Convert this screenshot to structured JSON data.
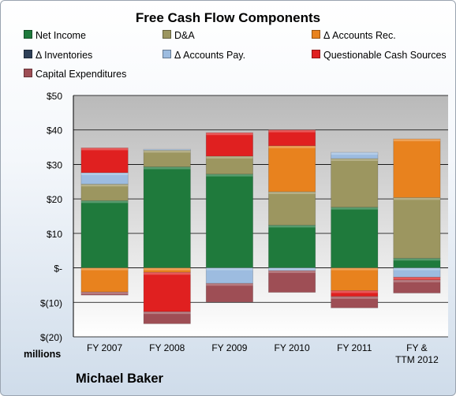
{
  "chart_data": {
    "type": "bar",
    "stacked": true,
    "title": "Free Cash Flow Components",
    "ylabel": "millions",
    "ylim": [
      -20,
      50
    ],
    "yticks": [
      "$50",
      "$40",
      "$30",
      "$20",
      "$10",
      "$-",
      "$(10)",
      "$(20)"
    ],
    "grid": true,
    "legend_position": "top",
    "categories": [
      "FY 2007",
      "FY 2008",
      "FY 2009",
      "FY 2010",
      "FY 2011",
      "FY & TTM 2012"
    ],
    "series": [
      {
        "name": "Net Income",
        "color": "#1f7a3c",
        "values": [
          19.5,
          29.3,
          27.2,
          12.4,
          17.6,
          2.8
        ]
      },
      {
        "name": "D&A",
        "color": "#9c9660",
        "values": [
          4.8,
          4.8,
          5.2,
          9.7,
          14.1,
          17.6
        ]
      },
      {
        "name": "Δ Accounts Rec.",
        "color": "#e8821e",
        "values": [
          -7.0,
          -1.3,
          0,
          13.3,
          -6.6,
          17.0
        ]
      },
      {
        "name": "Δ Inventories",
        "color": "#2e3f57",
        "values": [
          0,
          0,
          0,
          0,
          0,
          0
        ]
      },
      {
        "name": "Δ Accounts Pay.",
        "color": "#9dbce0",
        "values": [
          3.3,
          0.3,
          -4.5,
          -0.8,
          1.8,
          -2.7
        ]
      },
      {
        "name": "Questionable Cash Sources",
        "color": "#e02020",
        "values": [
          7.2,
          -11.4,
          6.8,
          4.6,
          -1.7,
          -0.8
        ]
      },
      {
        "name": "Capital Expenditures",
        "color": "#9e4e55",
        "values": [
          -0.9,
          -3.5,
          -5.4,
          -6.3,
          -3.3,
          -3.8
        ]
      }
    ]
  },
  "labels": {
    "unit": "millions",
    "company": "Michael Baker"
  }
}
